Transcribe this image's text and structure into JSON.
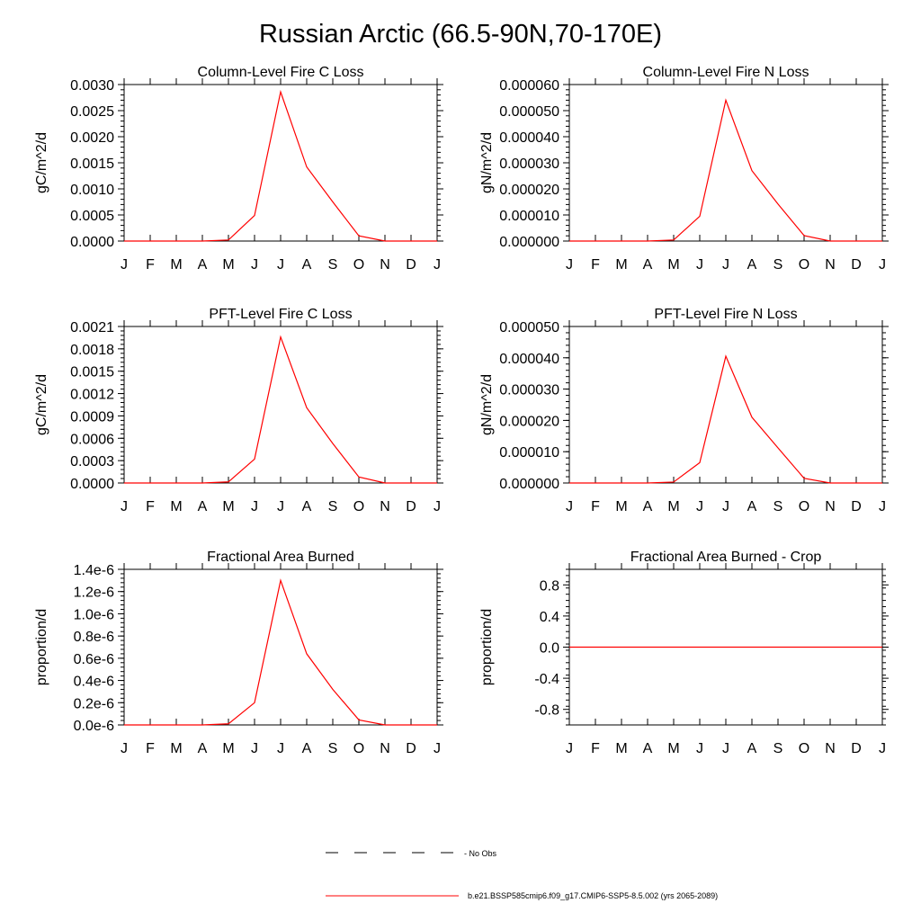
{
  "page": {
    "title": "Russian Arctic (66.5-90N,70-170E)"
  },
  "legend": {
    "entries": [
      {
        "label": "No Obs",
        "color": "#000000",
        "dash": true
      },
      {
        "label": "b.e21.BSSP585cmip6.f09_g17.CMIP6-SSP5-8.5.002 (yrs 2065-2089)",
        "color": "#ff0000",
        "dash": false
      }
    ]
  },
  "chart_data": [
    {
      "type": "line",
      "title": "Column-Level Fire C Loss",
      "ylabel": "gC/m^2/d",
      "categories": [
        "J",
        "F",
        "M",
        "A",
        "M",
        "J",
        "J",
        "A",
        "S",
        "O",
        "N",
        "D",
        "J"
      ],
      "ylim": [
        0,
        0.003
      ],
      "yticks": [
        "0.0000",
        "0.0005",
        "0.0010",
        "0.0015",
        "0.0020",
        "0.0025",
        "0.0030"
      ],
      "yticks_values": [
        0,
        0.0005,
        0.001,
        0.0015,
        0.002,
        0.0025,
        0.003
      ],
      "series": [
        {
          "color": "#ff0000",
          "values": [
            0,
            0,
            0,
            0,
            2e-05,
            0.00049,
            0.00286,
            0.00142,
            0.00075,
            0.0001,
            0,
            0,
            0
          ]
        }
      ]
    },
    {
      "type": "line",
      "title": "Column-Level Fire N Loss",
      "ylabel": "gN/m^2/d",
      "categories": [
        "J",
        "F",
        "M",
        "A",
        "M",
        "J",
        "J",
        "A",
        "S",
        "O",
        "N",
        "D",
        "J"
      ],
      "ylim": [
        0,
        6e-05
      ],
      "yticks": [
        "0.000000",
        "0.000010",
        "0.000020",
        "0.000030",
        "0.000040",
        "0.000050",
        "0.000060"
      ],
      "yticks_values": [
        0,
        1e-05,
        2e-05,
        3e-05,
        4e-05,
        5e-05,
        6e-05
      ],
      "series": [
        {
          "color": "#ff0000",
          "values": [
            0,
            0,
            0,
            0,
            4e-07,
            9.5e-06,
            5.4e-05,
            2.7e-05,
            1.42e-05,
            2.1e-06,
            0,
            0,
            0
          ]
        }
      ]
    },
    {
      "type": "line",
      "title": "PFT-Level Fire C Loss",
      "ylabel": "gC/m^2/d",
      "categories": [
        "J",
        "F",
        "M",
        "A",
        "M",
        "J",
        "J",
        "A",
        "S",
        "O",
        "N",
        "D",
        "J"
      ],
      "ylim": [
        0,
        0.0021
      ],
      "yticks": [
        "0.0000",
        "0.0003",
        "0.0006",
        "0.0009",
        "0.0012",
        "0.0015",
        "0.0018",
        "0.0021"
      ],
      "yticks_values": [
        0,
        0.0003,
        0.0006,
        0.0009,
        0.0012,
        0.0015,
        0.0018,
        0.0021
      ],
      "series": [
        {
          "color": "#ff0000",
          "values": [
            0,
            0,
            0,
            0,
            1.5e-05,
            0.00032,
            0.00196,
            0.00101,
            0.00053,
            8e-05,
            0,
            0,
            0
          ]
        }
      ]
    },
    {
      "type": "line",
      "title": "PFT-Level Fire N Loss",
      "ylabel": "gN/m^2/d",
      "categories": [
        "J",
        "F",
        "M",
        "A",
        "M",
        "J",
        "J",
        "A",
        "S",
        "O",
        "N",
        "D",
        "J"
      ],
      "ylim": [
        0,
        5e-05
      ],
      "yticks": [
        "0.000000",
        "0.000010",
        "0.000020",
        "0.000030",
        "0.000040",
        "0.000050"
      ],
      "yticks_values": [
        0,
        1e-05,
        2e-05,
        3e-05,
        4e-05,
        5e-05
      ],
      "series": [
        {
          "color": "#ff0000",
          "values": [
            0,
            0,
            0,
            0,
            3e-07,
            6.5e-06,
            4.05e-05,
            2.1e-05,
            1.12e-05,
            1.5e-06,
            0,
            0,
            0
          ]
        }
      ]
    },
    {
      "type": "line",
      "title": "Fractional Area Burned",
      "ylabel": "proportion/d",
      "categories": [
        "J",
        "F",
        "M",
        "A",
        "M",
        "J",
        "J",
        "A",
        "S",
        "O",
        "N",
        "D",
        "J"
      ],
      "ylim": [
        0,
        1.4e-06
      ],
      "yticks": [
        "0.0e-6",
        "0.2e-6",
        "0.4e-6",
        "0.6e-6",
        "0.8e-6",
        "1.0e-6",
        "1.2e-6",
        "1.4e-6"
      ],
      "yticks_values": [
        0,
        2e-07,
        4e-07,
        6e-07,
        8e-07,
        1e-06,
        1.2e-06,
        1.4e-06
      ],
      "series": [
        {
          "color": "#ff0000",
          "values": [
            0,
            0,
            0,
            0,
            1e-08,
            2e-07,
            1.3e-06,
            6.4e-07,
            3.2e-07,
            4.5e-08,
            0,
            0,
            0
          ]
        }
      ]
    },
    {
      "type": "line",
      "title": "Fractional Area Burned - Crop",
      "ylabel": "proportion/d",
      "categories": [
        "J",
        "F",
        "M",
        "A",
        "M",
        "J",
        "J",
        "A",
        "S",
        "O",
        "N",
        "D",
        "J"
      ],
      "ylim": [
        -1,
        1
      ],
      "yticks": [
        "-0.8",
        "-0.4",
        "0.0",
        "0.4",
        "0.8"
      ],
      "yticks_values": [
        -0.8,
        -0.4,
        0,
        0.4,
        0.8
      ],
      "series": [
        {
          "color": "#ff0000",
          "values": [
            0,
            0,
            0,
            0,
            0,
            0,
            0,
            0,
            0,
            0,
            0,
            0,
            0
          ]
        }
      ]
    }
  ]
}
